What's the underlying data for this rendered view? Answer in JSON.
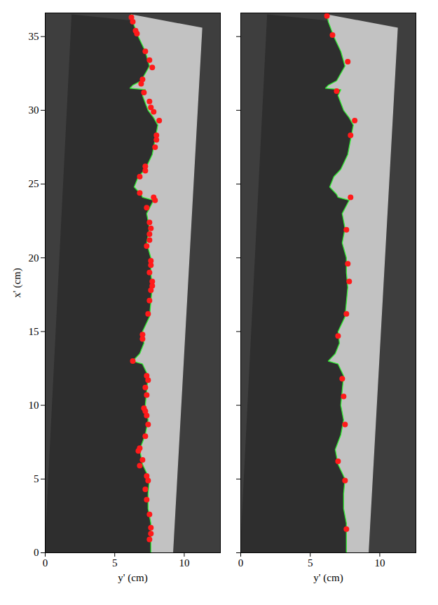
{
  "chart_data": {
    "type": "scatter",
    "xlabel": "y' (cm)",
    "xlim": [
      0,
      12.6
    ],
    "xticks": [
      0,
      5,
      10
    ],
    "ylim": [
      0,
      36.6
    ],
    "yticks": [
      0,
      5,
      10,
      15,
      20,
      25,
      30,
      35
    ],
    "image_region": {
      "color": "#2e2e2e",
      "x": [
        1.9,
        11.3,
        9.2,
        0,
        0
      ],
      "y": [
        36.5,
        35.6,
        0,
        0,
        0.9
      ]
    },
    "bright_region": {
      "color": "#c2c2c2"
    },
    "contour": {
      "color": "#33ee33",
      "line_style": "solid",
      "x": [
        7.6,
        7.6,
        7.6,
        7.4,
        7.4,
        7.5,
        7.0,
        6.8,
        7.2,
        7.4,
        7.2,
        7.3,
        7.4,
        7.0,
        6.3,
        6.8,
        7.1,
        7.0,
        7.5,
        7.6,
        7.7,
        7.6,
        7.6,
        7.3,
        7.5,
        7.3,
        7.8,
        7.0,
        6.9,
        6.4,
        6.7,
        7.2,
        7.7,
        7.9,
        8.1,
        7.8,
        7.4,
        7.0,
        7.2,
        6.1,
        6.3,
        6.9,
        7.5,
        7.2,
        6.7,
        6.3,
        6.2
      ],
      "y": [
        0,
        1,
        2,
        3,
        4,
        5,
        6,
        7,
        8,
        9,
        10,
        11,
        12,
        12.8,
        13.0,
        13.5,
        14.2,
        15,
        16,
        17,
        18,
        19,
        20,
        21,
        22,
        23,
        23.9,
        24.1,
        24.3,
        24.8,
        25.5,
        26,
        27,
        28,
        29,
        29.5,
        30,
        31,
        31.4,
        31.5,
        31.7,
        32,
        33,
        34,
        35,
        36,
        36.5
      ]
    },
    "panels": [
      {
        "ylabel": "x' (cm)",
        "points": {
          "color": "#ff1a1a",
          "marker": "circle",
          "x": [
            6.2,
            6.3,
            6.5,
            6.6,
            7.2,
            7.5,
            7.7,
            7.0,
            6.9,
            7.1,
            7.5,
            7.6,
            7.8,
            8.2,
            8.0,
            8.0,
            7.9,
            7.2,
            7.2,
            6.8,
            6.8,
            7.8,
            7.9,
            7.3,
            7.5,
            7.6,
            7.5,
            7.5,
            7.3,
            7.6,
            7.6,
            7.5,
            7.7,
            7.7,
            7.6,
            7.5,
            7.4,
            7.0,
            7.0,
            6.3,
            7.3,
            7.4,
            7.2,
            7.3,
            7.1,
            7.2,
            7.3,
            7.4,
            7.2,
            6.8,
            6.7,
            7.0,
            6.8,
            7.3,
            7.4,
            7.2,
            7.3,
            7.5,
            7.6,
            7.6,
            7.5
          ],
          "y": [
            36.3,
            36.0,
            35.4,
            35.2,
            34.0,
            33.4,
            32.9,
            32.1,
            31.8,
            31.2,
            30.6,
            30.2,
            29.9,
            29.3,
            28.3,
            28.0,
            27.5,
            26.2,
            25.9,
            25.5,
            24.4,
            24.1,
            23.9,
            23.4,
            22.4,
            22.0,
            21.6,
            21.2,
            20.8,
            19.8,
            19.5,
            19.0,
            18.4,
            18.1,
            17.8,
            17.1,
            16.2,
            14.8,
            14.5,
            13.0,
            12.0,
            11.7,
            11.2,
            10.7,
            9.8,
            9.6,
            9.3,
            8.7,
            7.9,
            7.1,
            6.9,
            6.3,
            5.9,
            5.2,
            4.9,
            4.3,
            3.6,
            2.6,
            1.7,
            1.3,
            0.9
          ]
        }
      },
      {
        "tick_labels": "x",
        "points": {
          "color": "#ff1a1a",
          "marker": "circle",
          "x": [
            6.2,
            6.6,
            7.7,
            6.9,
            8.2,
            7.9,
            7.9,
            7.6,
            7.7,
            7.8,
            7.6,
            7.0,
            7.3,
            7.4,
            7.5,
            7.0,
            7.5,
            7.6
          ],
          "y": [
            36.4,
            35.1,
            33.3,
            31.3,
            29.3,
            28.3,
            24.1,
            21.9,
            19.6,
            18.4,
            16.2,
            14.7,
            11.8,
            10.6,
            8.7,
            6.2,
            4.9,
            1.6
          ]
        }
      }
    ]
  }
}
